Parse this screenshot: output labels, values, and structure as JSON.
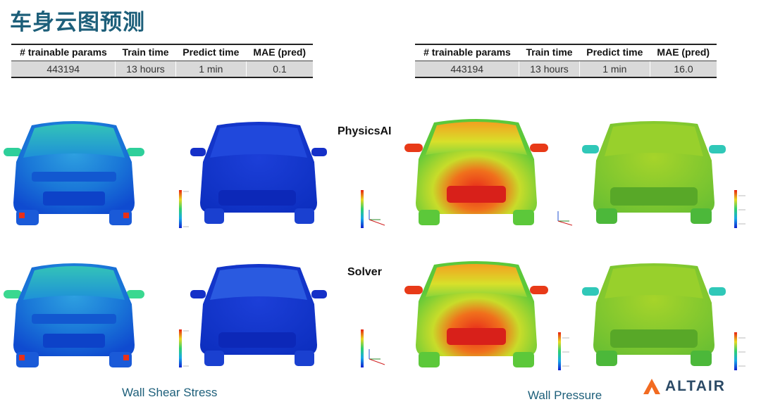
{
  "title": "车身云图预测",
  "tables": [
    {
      "headers": [
        "# trainable params",
        "Train time",
        "Predict time",
        "MAE (pred)"
      ],
      "values": [
        "443194",
        "13 hours",
        "1 min",
        "0.1"
      ]
    },
    {
      "headers": [
        "# trainable params",
        "Train time",
        "Predict time",
        "MAE (pred)"
      ],
      "values": [
        "443194",
        "13 hours",
        "1 min",
        "16.0"
      ]
    }
  ],
  "rows": {
    "physics_ai": "PhysicsAI",
    "solver": "Solver"
  },
  "captions": {
    "shear": "Wall Shear Stress",
    "pressure": "Wall Pressure"
  },
  "logo": {
    "text": "ALTAIR",
    "color": "#f26b21"
  },
  "colors": {
    "title": "#1d5f7a",
    "shear_body": "#1e78d8",
    "pressure_body": "#7ad63a",
    "hot": "#e82a12"
  }
}
